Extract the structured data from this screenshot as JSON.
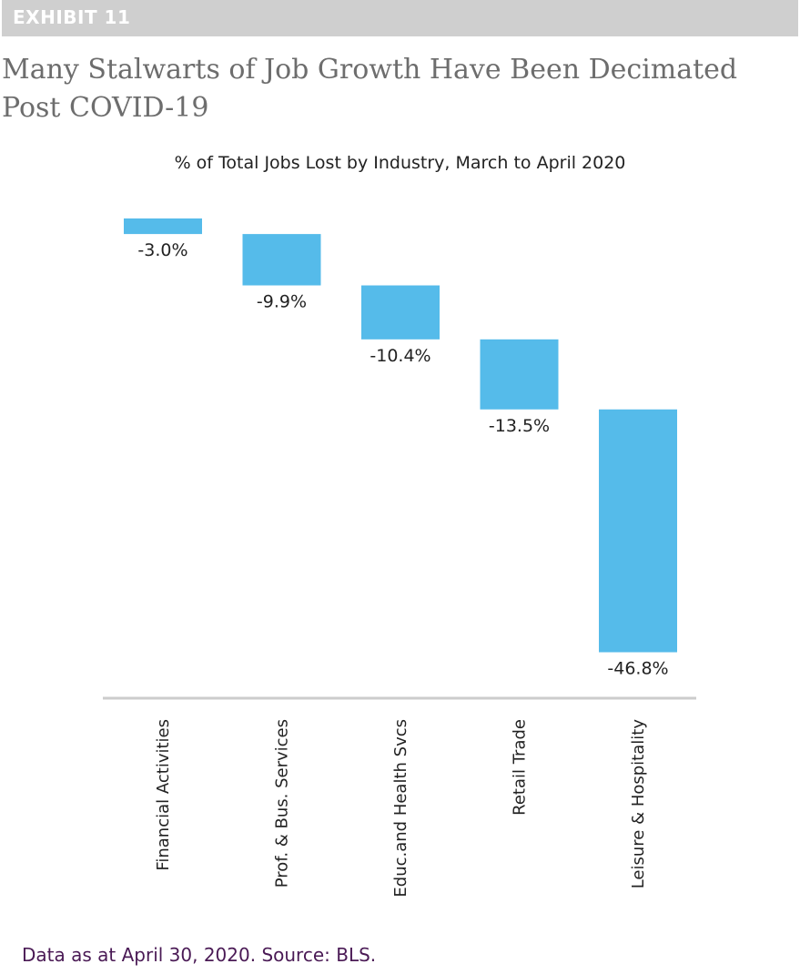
{
  "exhibit": {
    "label": "EXHIBIT 11"
  },
  "headline": "Many Stalwarts of Job Growth Have Been Decimated Post COVID-19",
  "footnote": "Data as at April 30, 2020. Source: BLS.",
  "colors": {
    "bar": "#55bbea",
    "axis": "#cccccc",
    "exhibit_bar": "#cfcfcf",
    "headline": "#6d6d6d",
    "footnote": "#4a1a55"
  },
  "chart_data": {
    "type": "waterfall",
    "title": "% of Total Jobs Lost by Industry, March to April 2020",
    "xlabel": "",
    "ylabel": "",
    "categories": [
      "Financial Activities",
      "Prof. & Bus. Services",
      "Educ.and Health Svcs",
      "Retail Trade",
      "Leisure & Hospitality"
    ],
    "values": [
      -3.0,
      -9.9,
      -10.4,
      -13.5,
      -46.8
    ],
    "value_labels": [
      "-3.0%",
      "-9.9%",
      "-10.4%",
      "-13.5%",
      "-46.8%"
    ],
    "unit": "%",
    "grid": false,
    "legend": "none"
  }
}
